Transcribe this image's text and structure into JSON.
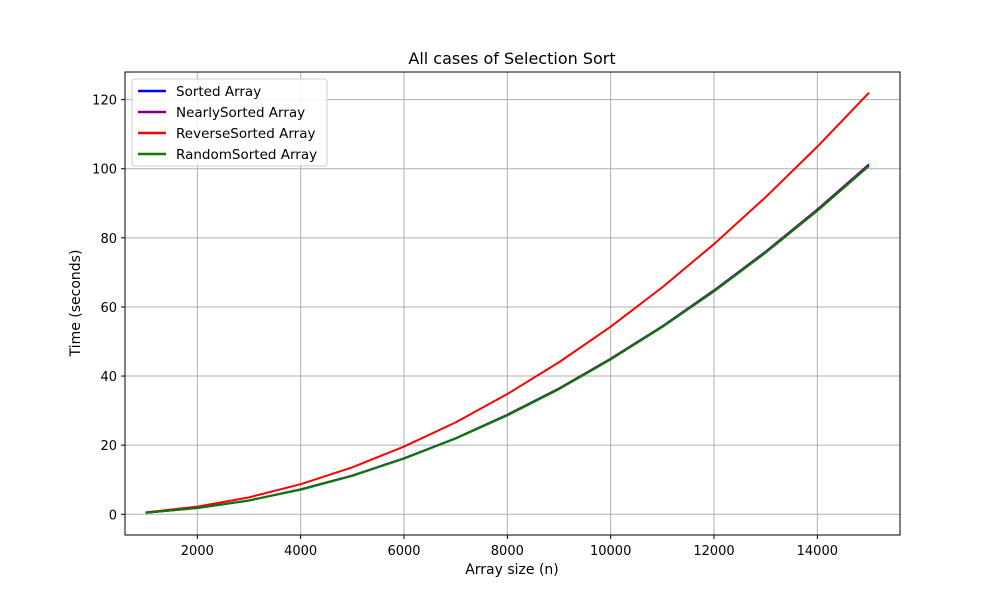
{
  "chart_data": {
    "type": "line",
    "title": "All cases of Selection Sort",
    "xlabel": "Array size (n)",
    "ylabel": "Time (seconds)",
    "xlim": [
      600,
      15600
    ],
    "ylim": [
      -6,
      128
    ],
    "xticks": [
      2000,
      4000,
      6000,
      8000,
      10000,
      12000,
      14000
    ],
    "yticks": [
      0,
      20,
      40,
      60,
      80,
      100,
      120
    ],
    "grid": true,
    "legend_position": "upper-left",
    "x": [
      1000,
      2000,
      3000,
      4000,
      5000,
      6000,
      7000,
      8000,
      9000,
      10000,
      11000,
      12000,
      13000,
      14000,
      15000
    ],
    "series": [
      {
        "name": "Sorted Array",
        "color": "#0000ff",
        "values": [
          0.45,
          1.8,
          4.0,
          7.2,
          11.2,
          16.2,
          22.0,
          28.8,
          36.4,
          45.0,
          54.4,
          64.8,
          76.0,
          88.2,
          101.2
        ]
      },
      {
        "name": "NearlySorted Array",
        "color": "#800080",
        "values": [
          0.45,
          1.8,
          4.0,
          7.2,
          11.2,
          16.2,
          22.0,
          28.8,
          36.4,
          45.0,
          54.4,
          64.8,
          76.0,
          88.2,
          101.3
        ]
      },
      {
        "name": "ReverseSorted Array",
        "color": "#ff0000",
        "values": [
          0.55,
          2.2,
          4.9,
          8.7,
          13.6,
          19.6,
          26.6,
          34.8,
          44.0,
          54.3,
          65.7,
          78.2,
          91.8,
          106.4,
          122.0
        ]
      },
      {
        "name": "RandomSorted Array",
        "color": "#008000",
        "values": [
          0.45,
          1.8,
          4.0,
          7.1,
          11.1,
          16.1,
          21.9,
          28.6,
          36.2,
          44.8,
          54.2,
          64.5,
          75.7,
          87.8,
          100.8
        ]
      }
    ]
  }
}
